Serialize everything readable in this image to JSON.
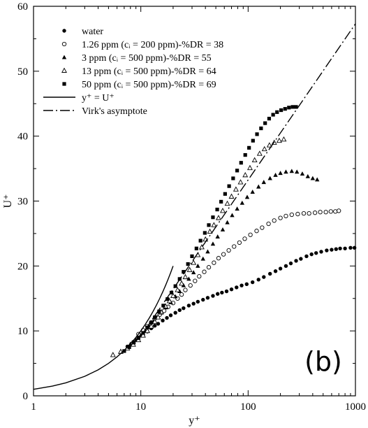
{
  "chart_data": {
    "type": "scatter",
    "xlabel": "y⁺",
    "ylabel": "U⁺",
    "xscale": "log",
    "xlim": [
      1,
      1000
    ],
    "ylim": [
      0,
      60
    ],
    "xticks": [
      1,
      10,
      100,
      1000
    ],
    "xtick_labels": [
      "1",
      "10",
      "100",
      "1000"
    ],
    "yticks": [
      0,
      10,
      20,
      30,
      40,
      50,
      60
    ],
    "ytick_labels": [
      "0",
      "10",
      "20",
      "30",
      "40",
      "50",
      "60"
    ],
    "grid": false,
    "legend_position": "top-left",
    "panel_label": "(b)",
    "series": [
      {
        "name": "water",
        "marker": "filled-circle",
        "points": [
          [
            7.5,
            7.6
          ],
          [
            8.5,
            8.3
          ],
          [
            9.5,
            8.9
          ],
          [
            10.5,
            9.4
          ],
          [
            11.5,
            9.9
          ],
          [
            12.5,
            10.4
          ],
          [
            13.5,
            10.8
          ],
          [
            14.5,
            11.1
          ],
          [
            16,
            11.6
          ],
          [
            17.5,
            12.0
          ],
          [
            19,
            12.4
          ],
          [
            21,
            12.8
          ],
          [
            23,
            13.2
          ],
          [
            25,
            13.5
          ],
          [
            28,
            13.9
          ],
          [
            31,
            14.2
          ],
          [
            34,
            14.5
          ],
          [
            38,
            14.8
          ],
          [
            42,
            15.1
          ],
          [
            47,
            15.4
          ],
          [
            52,
            15.7
          ],
          [
            57,
            15.9
          ],
          [
            63,
            16.1
          ],
          [
            70,
            16.4
          ],
          [
            78,
            16.7
          ],
          [
            87,
            17.0
          ],
          [
            97,
            17.2
          ],
          [
            110,
            17.5
          ],
          [
            125,
            17.9
          ],
          [
            140,
            18.3
          ],
          [
            160,
            18.8
          ],
          [
            180,
            19.2
          ],
          [
            200,
            19.6
          ],
          [
            225,
            20.0
          ],
          [
            250,
            20.4
          ],
          [
            280,
            20.8
          ],
          [
            310,
            21.1
          ],
          [
            350,
            21.5
          ],
          [
            390,
            21.8
          ],
          [
            430,
            22.0
          ],
          [
            480,
            22.2
          ],
          [
            540,
            22.4
          ],
          [
            600,
            22.5
          ],
          [
            660,
            22.6
          ],
          [
            720,
            22.7
          ],
          [
            800,
            22.7
          ],
          [
            900,
            22.8
          ],
          [
            980,
            22.8
          ]
        ]
      },
      {
        "name": "1.26 ppm (cᵢ = 200 ppm)-%DR = 38",
        "marker": "open-circle",
        "points": [
          [
            9.5,
            9.5
          ],
          [
            10.5,
            10.1
          ],
          [
            11.5,
            10.7
          ],
          [
            12.5,
            11.3
          ],
          [
            13.5,
            11.9
          ],
          [
            15,
            12.5
          ],
          [
            16.5,
            13.1
          ],
          [
            18,
            13.7
          ],
          [
            20,
            14.3
          ],
          [
            22,
            15.0
          ],
          [
            24,
            15.6
          ],
          [
            26,
            16.3
          ],
          [
            29,
            17.0
          ],
          [
            32,
            17.7
          ],
          [
            35,
            18.4
          ],
          [
            39,
            19.1
          ],
          [
            43,
            19.8
          ],
          [
            48,
            20.5
          ],
          [
            53,
            21.2
          ],
          [
            59,
            21.8
          ],
          [
            66,
            22.4
          ],
          [
            74,
            23.0
          ],
          [
            83,
            23.6
          ],
          [
            93,
            24.2
          ],
          [
            105,
            24.8
          ],
          [
            120,
            25.4
          ],
          [
            135,
            25.9
          ],
          [
            155,
            26.5
          ],
          [
            175,
            27.0
          ],
          [
            200,
            27.4
          ],
          [
            225,
            27.7
          ],
          [
            255,
            27.9
          ],
          [
            290,
            28.0
          ],
          [
            330,
            28.1
          ],
          [
            370,
            28.1
          ],
          [
            420,
            28.2
          ],
          [
            470,
            28.3
          ],
          [
            530,
            28.3
          ],
          [
            590,
            28.4
          ],
          [
            650,
            28.4
          ],
          [
            700,
            28.5
          ]
        ]
      },
      {
        "name": "3 ppm (cᵢ = 500 ppm)-%DR = 55",
        "marker": "filled-triangle",
        "points": [
          [
            8,
            8.0
          ],
          [
            9,
            8.6
          ],
          [
            10,
            9.3
          ],
          [
            11,
            10.0
          ],
          [
            12,
            10.7
          ],
          [
            13,
            11.4
          ],
          [
            14,
            12.1
          ],
          [
            15.5,
            12.8
          ],
          [
            17,
            13.6
          ],
          [
            19,
            14.4
          ],
          [
            21,
            15.3
          ],
          [
            23,
            16.1
          ],
          [
            25,
            17.0
          ],
          [
            28,
            18.0
          ],
          [
            31,
            19.0
          ],
          [
            34,
            20.0
          ],
          [
            38,
            21.1
          ],
          [
            42,
            22.2
          ],
          [
            47,
            23.4
          ],
          [
            52,
            24.5
          ],
          [
            58,
            25.6
          ],
          [
            64,
            26.7
          ],
          [
            71,
            27.8
          ],
          [
            79,
            28.8
          ],
          [
            88,
            29.7
          ],
          [
            98,
            30.6
          ],
          [
            110,
            31.4
          ],
          [
            125,
            32.2
          ],
          [
            140,
            32.9
          ],
          [
            160,
            33.5
          ],
          [
            180,
            34.0
          ],
          [
            200,
            34.3
          ],
          [
            225,
            34.5
          ],
          [
            255,
            34.6
          ],
          [
            285,
            34.5
          ],
          [
            320,
            34.2
          ],
          [
            360,
            33.8
          ],
          [
            400,
            33.5
          ],
          [
            440,
            33.3
          ]
        ]
      },
      {
        "name": "13 ppm (cᵢ = 500 ppm)-%DR = 64",
        "marker": "open-triangle",
        "points": [
          [
            5.5,
            6.3
          ],
          [
            6.5,
            6.8
          ],
          [
            7.5,
            7.3
          ],
          [
            8.5,
            7.9
          ],
          [
            9.5,
            8.6
          ],
          [
            10.5,
            9.3
          ],
          [
            11.5,
            10.0
          ],
          [
            12.5,
            10.7
          ],
          [
            13.5,
            11.4
          ],
          [
            14.5,
            12.1
          ],
          [
            15.5,
            12.9
          ],
          [
            17,
            13.8
          ],
          [
            18.5,
            14.6
          ],
          [
            20,
            15.4
          ],
          [
            22,
            16.3
          ],
          [
            24,
            17.3
          ],
          [
            26,
            18.3
          ],
          [
            28.5,
            19.4
          ],
          [
            31,
            20.5
          ],
          [
            34,
            21.7
          ],
          [
            37,
            22.9
          ],
          [
            40,
            24.1
          ],
          [
            44,
            25.3
          ],
          [
            48,
            26.3
          ],
          [
            53,
            27.4
          ],
          [
            58,
            28.5
          ],
          [
            64,
            29.6
          ],
          [
            70,
            30.7
          ],
          [
            77,
            31.8
          ],
          [
            85,
            32.9
          ],
          [
            94,
            34.0
          ],
          [
            104,
            35.1
          ],
          [
            115,
            36.3
          ],
          [
            128,
            37.3
          ],
          [
            142,
            38.0
          ],
          [
            158,
            38.6
          ],
          [
            175,
            39.0
          ],
          [
            195,
            39.3
          ],
          [
            215,
            39.5
          ]
        ]
      },
      {
        "name": "50 ppm (cᵢ = 500 ppm)-%DR = 69",
        "marker": "filled-square",
        "points": [
          [
            7,
            6.9
          ],
          [
            7.8,
            7.5
          ],
          [
            8.6,
            8.2
          ],
          [
            9.5,
            8.9
          ],
          [
            10.5,
            9.7
          ],
          [
            11.5,
            10.5
          ],
          [
            12.5,
            11.3
          ],
          [
            13.5,
            12.1
          ],
          [
            14.8,
            13.0
          ],
          [
            16.2,
            13.9
          ],
          [
            17.7,
            14.9
          ],
          [
            19.3,
            15.9
          ],
          [
            21,
            16.9
          ],
          [
            23,
            18.0
          ],
          [
            25,
            19.1
          ],
          [
            27.5,
            20.3
          ],
          [
            30,
            21.5
          ],
          [
            33,
            22.7
          ],
          [
            36,
            23.9
          ],
          [
            39.5,
            25.1
          ],
          [
            43,
            26.3
          ],
          [
            47,
            27.5
          ],
          [
            51.5,
            28.7
          ],
          [
            56,
            29.9
          ],
          [
            61,
            31.1
          ],
          [
            66.5,
            32.3
          ],
          [
            72.5,
            33.5
          ],
          [
            79,
            34.7
          ],
          [
            86,
            35.9
          ],
          [
            94,
            37.1
          ],
          [
            102,
            38.2
          ],
          [
            111,
            39.3
          ],
          [
            121,
            40.3
          ],
          [
            132,
            41.2
          ],
          [
            144,
            42.0
          ],
          [
            157,
            42.7
          ],
          [
            171,
            43.3
          ],
          [
            186,
            43.7
          ],
          [
            203,
            44.0
          ],
          [
            221,
            44.2
          ],
          [
            240,
            44.4
          ],
          [
            260,
            44.5
          ],
          [
            280,
            44.5
          ]
        ]
      },
      {
        "name": "y⁺ = U⁺",
        "style": "solid-line",
        "points": [
          [
            1,
            1.0
          ],
          [
            1.5,
            1.5
          ],
          [
            2,
            2.0
          ],
          [
            3,
            3.0
          ],
          [
            4,
            4.0
          ],
          [
            5,
            5.0
          ],
          [
            6,
            6.0
          ],
          [
            7,
            7.0
          ],
          [
            8,
            8.0
          ],
          [
            9,
            9.0
          ],
          [
            10,
            10.0
          ],
          [
            11,
            11.0
          ],
          [
            12,
            12.0
          ],
          [
            13,
            13.0
          ],
          [
            14,
            14.0
          ],
          [
            15,
            15.0
          ],
          [
            16,
            16.0
          ],
          [
            17,
            17.0
          ],
          [
            18,
            18.0
          ],
          [
            19,
            19.0
          ],
          [
            20,
            20.0
          ]
        ]
      },
      {
        "name": "Virk's asymptote",
        "style": "dash-dot-line",
        "points": [
          [
            11,
            10.2
          ],
          [
            1000,
            57.3
          ]
        ]
      }
    ]
  }
}
